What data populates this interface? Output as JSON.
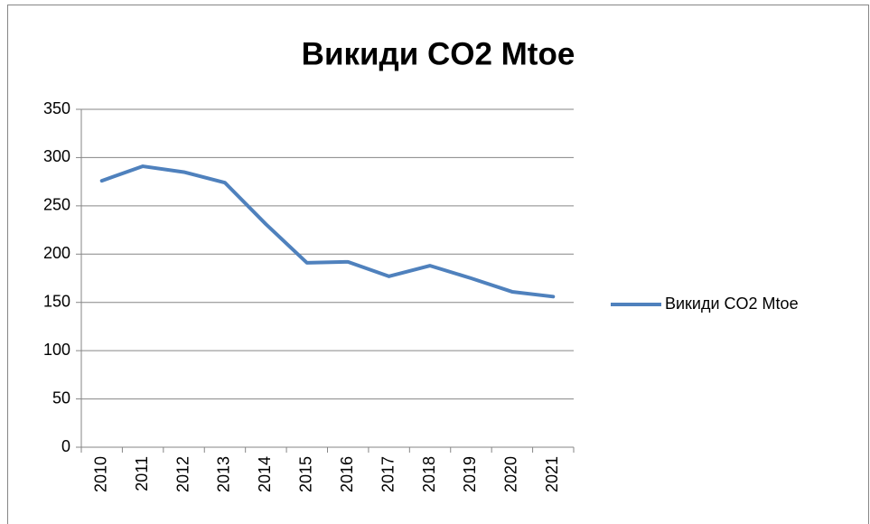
{
  "chart_data": {
    "type": "line",
    "title": "Викиди CO2  Mtoe",
    "categories": [
      "2010",
      "2011",
      "2012",
      "2013",
      "2014",
      "2015",
      "2016",
      "2017",
      "2018",
      "2019",
      "2020",
      "2021"
    ],
    "series": [
      {
        "name": "Викиди CO2  Mtoe",
        "color": "#4f81bd",
        "values": [
          276,
          291,
          285,
          274,
          231,
          191,
          192,
          177,
          188,
          175,
          161,
          156
        ]
      }
    ],
    "ylim": [
      0,
      350
    ],
    "yticks": [
      0,
      50,
      100,
      150,
      200,
      250,
      300,
      350
    ],
    "grid": true,
    "legend": "right"
  }
}
